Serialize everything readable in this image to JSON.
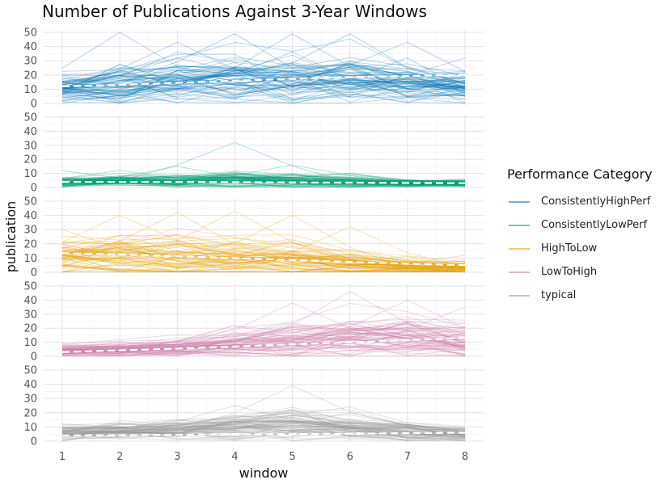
{
  "chart_data": {
    "type": "line",
    "title": "Number of Publications Against 3-Year Windows",
    "xlabel": "window",
    "ylabel": "publication",
    "x": [
      1,
      2,
      3,
      4,
      5,
      6,
      7,
      8
    ],
    "xlim": [
      1,
      8
    ],
    "ylim": [
      0,
      50
    ],
    "yticks": [
      0,
      10,
      20,
      30,
      40,
      50
    ],
    "grid": true,
    "facets": "stacked-rows",
    "legend_title": "Performance Category",
    "legend_position": "right",
    "series": [
      {
        "name": "ConsistentlyHighPerf",
        "color": "#0072B2",
        "trend": [
          12,
          13,
          14.5,
          16,
          17.3,
          18.5,
          19.3,
          20
        ],
        "center": [
          10,
          13,
          15,
          17,
          17,
          18,
          14,
          11
        ],
        "spread": [
          6,
          9,
          10,
          10,
          11,
          10,
          8,
          7
        ],
        "peaks": [
          [
            2,
            50
          ],
          [
            4,
            49
          ],
          [
            5,
            49
          ],
          [
            6,
            49
          ],
          [
            3,
            43
          ],
          [
            7,
            43
          ],
          [
            8,
            32
          ]
        ]
      },
      {
        "name": "ConsistentlyLowPerf",
        "color": "#009E73",
        "trend": [
          4,
          4,
          4,
          3.8,
          3.6,
          3.4,
          3.2,
          3
        ],
        "center": [
          4,
          5,
          5,
          6,
          5,
          4,
          3,
          3
        ],
        "spread": [
          2,
          2,
          2.5,
          3,
          3,
          2.5,
          1.5,
          1.5
        ],
        "peaks": [
          [
            4,
            32
          ],
          [
            5,
            16
          ],
          [
            3,
            15
          ],
          [
            2,
            12
          ],
          [
            1,
            12
          ],
          [
            6,
            10
          ]
        ]
      },
      {
        "name": "HighToLow",
        "color": "#E69F00",
        "trend": [
          13.5,
          12.5,
          11.3,
          10,
          8.6,
          7.3,
          6,
          5
        ],
        "center": [
          11,
          12,
          11,
          10,
          8,
          6,
          4,
          3
        ],
        "spread": [
          6,
          8,
          8,
          8,
          7,
          5,
          3,
          2.5
        ],
        "peaks": [
          [
            2,
            40
          ],
          [
            3,
            42
          ],
          [
            4,
            43
          ],
          [
            5,
            40
          ],
          [
            6,
            32
          ],
          [
            1,
            30
          ],
          [
            8,
            12
          ]
        ]
      },
      {
        "name": "LowToHigh",
        "color": "#CC79A7",
        "trend": [
          3,
          4.3,
          5.5,
          7,
          8.5,
          10,
          11.5,
          13
        ],
        "center": [
          4,
          5,
          6,
          9,
          11,
          13,
          13,
          10
        ],
        "spread": [
          2.5,
          3,
          3.5,
          5,
          7,
          8,
          8,
          7
        ],
        "peaks": [
          [
            6,
            46
          ],
          [
            5,
            38
          ],
          [
            7,
            40
          ],
          [
            8,
            35
          ],
          [
            4,
            22
          ]
        ]
      },
      {
        "name": "typical",
        "color": "#999999",
        "trend": [
          4,
          4.2,
          4.5,
          4.8,
          5,
          5.3,
          5.6,
          6
        ],
        "center": [
          6,
          7,
          8,
          10,
          11,
          10,
          7,
          5
        ],
        "spread": [
          3,
          3,
          4,
          5,
          6,
          5,
          4,
          3
        ],
        "peaks": [
          [
            5,
            39
          ],
          [
            4,
            25
          ],
          [
            6,
            20
          ],
          [
            3,
            15
          ],
          [
            7,
            12
          ]
        ]
      }
    ]
  }
}
